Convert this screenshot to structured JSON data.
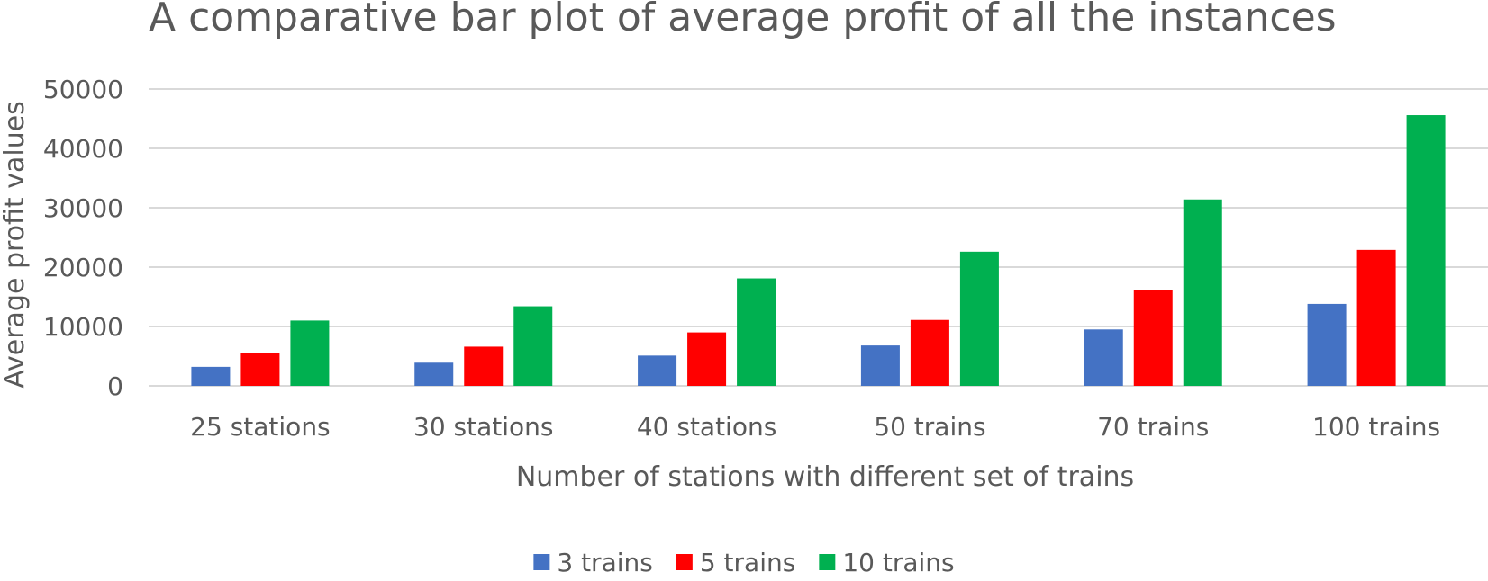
{
  "chart_data": {
    "type": "bar",
    "title": "A comparative bar plot of average profit of all the instances",
    "xlabel": "Number of stations with different set of trains",
    "ylabel": "Average profit values",
    "ylim": [
      0,
      50000
    ],
    "yticks": [
      "0",
      "10000",
      "20000",
      "30000",
      "40000",
      "50000"
    ],
    "grid": true,
    "legend_position": "bottom",
    "categories": [
      "25 stations",
      "30 stations",
      "40 stations",
      "50 trains",
      "70 trains",
      "100 trains"
    ],
    "series": [
      {
        "name": "3 trains",
        "color": "#4472c4",
        "values": [
          3200,
          3900,
          5100,
          6800,
          9500,
          13800
        ]
      },
      {
        "name": "5 trains",
        "color": "#ff0000",
        "values": [
          5500,
          6600,
          9000,
          11100,
          16100,
          22900
        ]
      },
      {
        "name": "10 trains",
        "color": "#00b050",
        "values": [
          11000,
          13400,
          18100,
          22600,
          31400,
          45600
        ]
      }
    ]
  }
}
